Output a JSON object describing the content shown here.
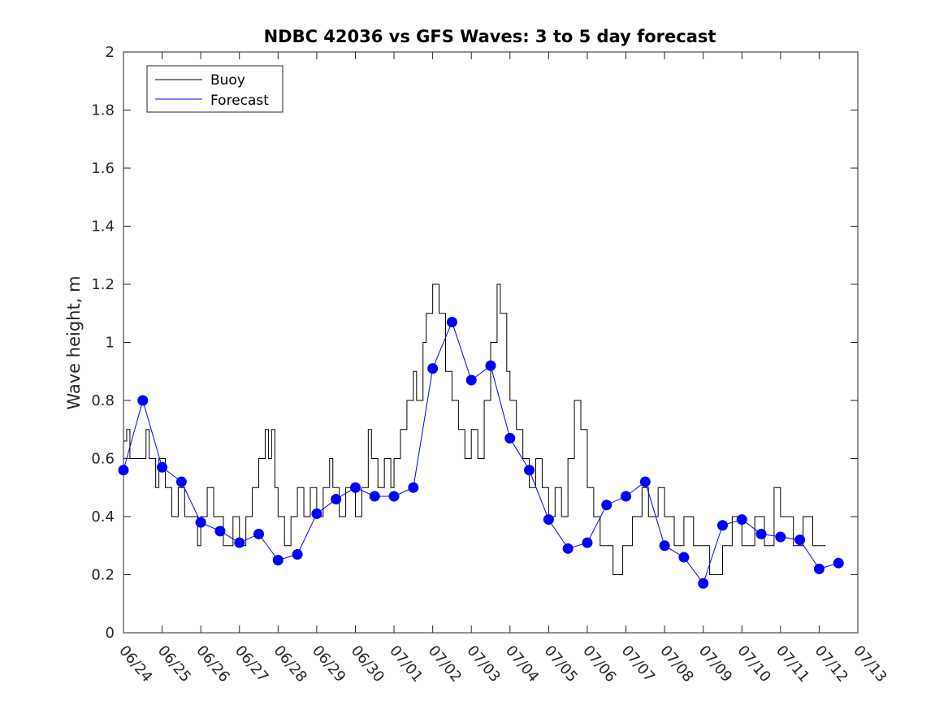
{
  "chart_data": {
    "type": "line",
    "title": "NDBC 42036 vs GFS Waves: 3 to 5 day forecast",
    "xlabel": "",
    "ylabel": "Wave height, m",
    "xlim": [
      "06/24",
      "07/13"
    ],
    "ylim": [
      0,
      2
    ],
    "x_tick_labels": [
      "06/24",
      "06/25",
      "06/26",
      "06/27",
      "06/28",
      "06/29",
      "06/30",
      "07/01",
      "07/02",
      "07/03",
      "07/04",
      "07/05",
      "07/06",
      "07/07",
      "07/08",
      "07/09",
      "07/10",
      "07/11",
      "07/12",
      "07/13"
    ],
    "y_ticks": [
      0,
      0.2,
      0.4,
      0.6,
      0.8,
      1,
      1.2,
      1.4,
      1.6,
      1.8,
      2
    ],
    "y_tick_labels": [
      "0",
      "0.2",
      "0.4",
      "0.6",
      "0.8",
      "1",
      "1.2",
      "1.4",
      "1.6",
      "1.8",
      "2"
    ],
    "grid": false,
    "legend": {
      "position": "top-left",
      "entries": [
        {
          "label": "Buoy",
          "color": "#000000"
        },
        {
          "label": "Forecast",
          "color": "#0000ff"
        }
      ]
    },
    "colors": {
      "buoy": "#000000",
      "forecast": "#0000ff"
    },
    "series": [
      {
        "name": "Buoy",
        "style": "step",
        "color": "#000000",
        "points": [
          [
            "06/24 00:00",
            0.66
          ],
          [
            "06/24 02:00",
            0.7
          ],
          [
            "06/24 04:00",
            0.6
          ],
          [
            "06/24 12:00",
            0.6
          ],
          [
            "06/24 14:00",
            0.7
          ],
          [
            "06/24 16:00",
            0.6
          ],
          [
            "06/24 20:00",
            0.5
          ],
          [
            "06/24 22:00",
            0.6
          ],
          [
            "06/25 00:00",
            0.6
          ],
          [
            "06/25 02:00",
            0.5
          ],
          [
            "06/25 06:00",
            0.4
          ],
          [
            "06/25 10:00",
            0.5
          ],
          [
            "06/25 14:00",
            0.4
          ],
          [
            "06/25 22:00",
            0.3
          ],
          [
            "06/26 00:00",
            0.4
          ],
          [
            "06/26 04:00",
            0.5
          ],
          [
            "06/26 08:00",
            0.4
          ],
          [
            "06/26 14:00",
            0.3
          ],
          [
            "06/26 20:00",
            0.4
          ],
          [
            "06/27 00:00",
            0.3
          ],
          [
            "06/27 04:00",
            0.4
          ],
          [
            "06/27 08:00",
            0.5
          ],
          [
            "06/27 12:00",
            0.6
          ],
          [
            "06/27 16:00",
            0.7
          ],
          [
            "06/27 18:00",
            0.6
          ],
          [
            "06/27 20:00",
            0.7
          ],
          [
            "06/27 22:00",
            0.5
          ],
          [
            "06/28 00:00",
            0.4
          ],
          [
            "06/28 04:00",
            0.3
          ],
          [
            "06/28 08:00",
            0.4
          ],
          [
            "06/28 12:00",
            0.5
          ],
          [
            "06/28 16:00",
            0.4
          ],
          [
            "06/28 20:00",
            0.5
          ],
          [
            "06/29 00:00",
            0.4
          ],
          [
            "06/29 04:00",
            0.5
          ],
          [
            "06/29 08:00",
            0.6
          ],
          [
            "06/29 10:00",
            0.5
          ],
          [
            "06/29 14:00",
            0.4
          ],
          [
            "06/29 18:00",
            0.5
          ],
          [
            "06/30 00:00",
            0.4
          ],
          [
            "06/30 04:00",
            0.5
          ],
          [
            "06/30 08:00",
            0.7
          ],
          [
            "06/30 10:00",
            0.6
          ],
          [
            "06/30 14:00",
            0.5
          ],
          [
            "06/30 18:00",
            0.6
          ],
          [
            "06/30 22:00",
            0.5
          ],
          [
            "07/01 00:00",
            0.6
          ],
          [
            "07/01 04:00",
            0.7
          ],
          [
            "07/01 08:00",
            0.8
          ],
          [
            "07/01 12:00",
            0.9
          ],
          [
            "07/01 14:00",
            0.8
          ],
          [
            "07/01 18:00",
            1.0
          ],
          [
            "07/01 20:00",
            1.1
          ],
          [
            "07/02 00:00",
            1.2
          ],
          [
            "07/02 04:00",
            1.1
          ],
          [
            "07/02 08:00",
            0.9
          ],
          [
            "07/02 12:00",
            0.8
          ],
          [
            "07/02 16:00",
            0.7
          ],
          [
            "07/02 20:00",
            0.6
          ],
          [
            "07/03 00:00",
            0.7
          ],
          [
            "07/03 04:00",
            0.6
          ],
          [
            "07/03 08:00",
            0.8
          ],
          [
            "07/03 12:00",
            1.0
          ],
          [
            "07/03 16:00",
            1.2
          ],
          [
            "07/03 18:00",
            1.1
          ],
          [
            "07/03 22:00",
            0.9
          ],
          [
            "07/04 00:00",
            0.8
          ],
          [
            "07/04 04:00",
            0.7
          ],
          [
            "07/04 08:00",
            0.6
          ],
          [
            "07/04 12:00",
            0.5
          ],
          [
            "07/04 16:00",
            0.6
          ],
          [
            "07/04 20:00",
            0.5
          ],
          [
            "07/05 00:00",
            0.4
          ],
          [
            "07/05 04:00",
            0.5
          ],
          [
            "07/05 08:00",
            0.4
          ],
          [
            "07/05 12:00",
            0.6
          ],
          [
            "07/05 16:00",
            0.8
          ],
          [
            "07/05 20:00",
            0.7
          ],
          [
            "07/06 00:00",
            0.5
          ],
          [
            "07/06 04:00",
            0.4
          ],
          [
            "07/06 08:00",
            0.3
          ],
          [
            "07/06 16:00",
            0.2
          ],
          [
            "07/06 22:00",
            0.3
          ],
          [
            "07/07 04:00",
            0.4
          ],
          [
            "07/07 10:00",
            0.5
          ],
          [
            "07/07 14:00",
            0.4
          ],
          [
            "07/07 20:00",
            0.5
          ],
          [
            "07/08 00:00",
            0.4
          ],
          [
            "07/08 06:00",
            0.3
          ],
          [
            "07/08 12:00",
            0.4
          ],
          [
            "07/08 18:00",
            0.3
          ],
          [
            "07/09 04:00",
            0.2
          ],
          [
            "07/09 12:00",
            0.3
          ],
          [
            "07/09 18:00",
            0.4
          ],
          [
            "07/10 00:00",
            0.3
          ],
          [
            "07/10 08:00",
            0.4
          ],
          [
            "07/10 14:00",
            0.3
          ],
          [
            "07/10 20:00",
            0.5
          ],
          [
            "07/11 00:00",
            0.4
          ],
          [
            "07/11 08:00",
            0.3
          ],
          [
            "07/11 14:00",
            0.4
          ],
          [
            "07/11 20:00",
            0.3
          ],
          [
            "07/12 04:00",
            0.3
          ]
        ]
      },
      {
        "name": "Forecast",
        "style": "line",
        "color": "#0000ff",
        "points": [
          [
            "06/24 00:00",
            0.56
          ],
          [
            "06/24 12:00",
            0.8
          ],
          [
            "06/25 00:00",
            0.57
          ],
          [
            "06/25 12:00",
            0.52
          ],
          [
            "06/26 00:00",
            0.38
          ],
          [
            "06/26 12:00",
            0.35
          ],
          [
            "06/27 00:00",
            0.31
          ],
          [
            "06/27 12:00",
            0.34
          ],
          [
            "06/28 00:00",
            0.25
          ],
          [
            "06/28 12:00",
            0.27
          ],
          [
            "06/29 00:00",
            0.41
          ],
          [
            "06/29 12:00",
            0.46
          ],
          [
            "06/30 00:00",
            0.5
          ],
          [
            "06/30 12:00",
            0.47
          ],
          [
            "07/01 00:00",
            0.47
          ],
          [
            "07/01 12:00",
            0.5
          ],
          [
            "07/02 00:00",
            0.91
          ],
          [
            "07/02 12:00",
            1.07
          ],
          [
            "07/03 00:00",
            0.87
          ],
          [
            "07/03 12:00",
            0.92
          ],
          [
            "07/04 00:00",
            0.67
          ],
          [
            "07/04 12:00",
            0.56
          ],
          [
            "07/05 00:00",
            0.39
          ],
          [
            "07/05 12:00",
            0.29
          ],
          [
            "07/06 00:00",
            0.31
          ],
          [
            "07/06 12:00",
            0.44
          ],
          [
            "07/07 00:00",
            0.47
          ],
          [
            "07/07 12:00",
            0.52
          ],
          [
            "07/08 00:00",
            0.3
          ],
          [
            "07/08 12:00",
            0.26
          ],
          [
            "07/09 00:00",
            0.17
          ],
          [
            "07/09 12:00",
            0.37
          ],
          [
            "07/10 00:00",
            0.39
          ],
          [
            "07/10 12:00",
            0.34
          ],
          [
            "07/11 00:00",
            0.33
          ],
          [
            "07/11 12:00",
            0.32
          ],
          [
            "07/12 00:00",
            0.22
          ],
          [
            "07/12 12:00",
            0.24
          ]
        ]
      }
    ]
  }
}
